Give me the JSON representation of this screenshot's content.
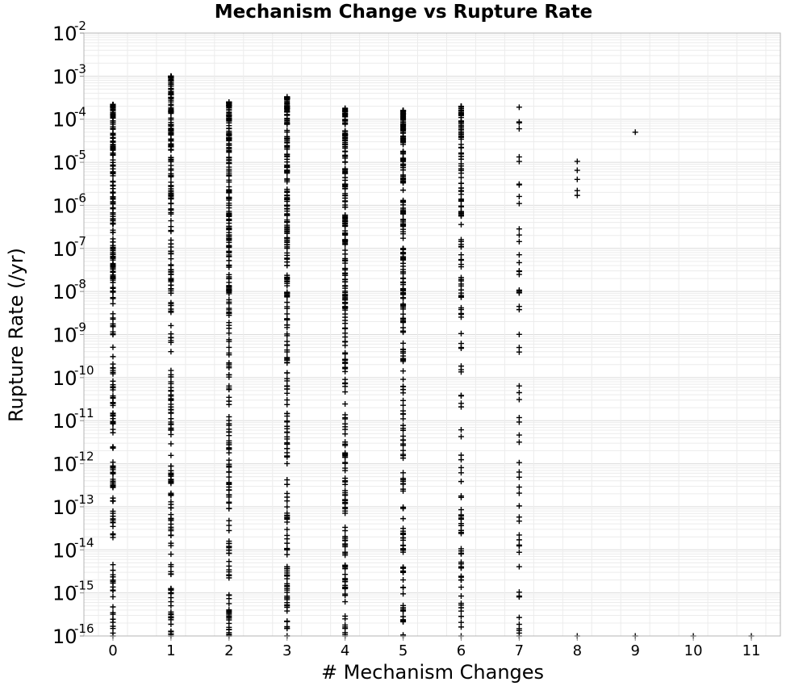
{
  "chart_data": {
    "type": "scatter",
    "title": "Mechanism Change vs Rupture Rate",
    "xlabel": "# Mechanism Changes",
    "ylabel": "Rupture Rate (/yr)",
    "x_ticks": [
      "0",
      "1",
      "2",
      "3",
      "4",
      "5",
      "6",
      "7",
      "8",
      "9",
      "10",
      "11"
    ],
    "xlim": [
      -0.5,
      11.5
    ],
    "y_scale": "log",
    "ylim": [
      1e-16,
      0.01
    ],
    "y_tick_base": "10",
    "y_tick_exponents": [
      "-2",
      "-3",
      "-4",
      "-5",
      "-6",
      "-7",
      "-8",
      "-9",
      "-10",
      "-11",
      "-12",
      "-13",
      "-14",
      "-15",
      "-16"
    ],
    "grid": true,
    "marker": "+",
    "marker_color": "#000000",
    "series_summary": [
      {
        "x": 0,
        "max": 0.00022,
        "min": 1e-16,
        "density": "dense"
      },
      {
        "x": 1,
        "max": 0.001,
        "min": 1e-16,
        "density": "dense"
      },
      {
        "x": 2,
        "max": 0.00025,
        "min": 1e-16,
        "density": "dense"
      },
      {
        "x": 3,
        "max": 0.00033,
        "min": 1e-16,
        "density": "dense"
      },
      {
        "x": 4,
        "max": 0.00018,
        "min": 1e-16,
        "density": "dense"
      },
      {
        "x": 5,
        "max": 0.00016,
        "min": 1e-16,
        "density": "dense"
      },
      {
        "x": 6,
        "max": 0.0002,
        "min": 1e-16,
        "density": "medium"
      },
      {
        "x": 7,
        "max": 0.00019,
        "min": 1e-16,
        "density": "sparse"
      }
    ],
    "points": [
      {
        "x": 8,
        "y": 1.05e-05
      },
      {
        "x": 8,
        "y": 6.5e-06
      },
      {
        "x": 8,
        "y": 4e-06
      },
      {
        "x": 8,
        "y": 2.2e-06
      },
      {
        "x": 8,
        "y": 1.7e-06
      },
      {
        "x": 8,
        "y": 1e-16
      },
      {
        "x": 9,
        "y": 5e-05
      },
      {
        "x": 9,
        "y": 1e-16
      },
      {
        "x": 10,
        "y": 1e-16
      },
      {
        "x": 11,
        "y": 1e-16
      }
    ]
  }
}
